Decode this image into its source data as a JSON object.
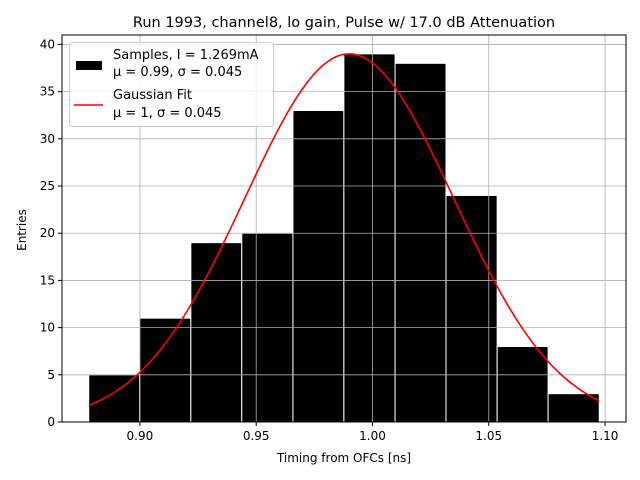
{
  "chart_data": {
    "type": "bar",
    "title": "Run 1993, channel8, lo gain, Pulse w/ 17.0 dB Attenuation",
    "xlabel": "Timing from OFCs [ns]",
    "ylabel": "Entries",
    "xlim": [
      0.8665,
      1.109
    ],
    "ylim": [
      0,
      41
    ],
    "xticks": [
      0.9,
      0.95,
      1.0,
      1.05,
      1.1
    ],
    "xtick_labels": [
      "0.90",
      "0.95",
      "1.00",
      "1.05",
      "1.10"
    ],
    "yticks": [
      0,
      5,
      10,
      15,
      20,
      25,
      30,
      35,
      40
    ],
    "ytick_labels": [
      "0",
      "5",
      "10",
      "15",
      "20",
      "25",
      "30",
      "35",
      "40"
    ],
    "grid": true,
    "bin_edges": [
      0.878,
      0.8999,
      0.9219,
      0.9438,
      0.9658,
      0.9877,
      1.0097,
      1.0316,
      1.0536,
      1.0755,
      1.0975
    ],
    "values": [
      5,
      11,
      19,
      20,
      33,
      39,
      38,
      24,
      8,
      3
    ],
    "fit": {
      "type": "gaussian",
      "amplitude": 39,
      "mu": 0.99,
      "sigma": 0.045,
      "x_range": [
        0.878,
        1.0975
      ]
    },
    "colors": {
      "bars": "#000000",
      "fit": "#ff0000"
    },
    "legend": {
      "placement": "top-left",
      "entries": [
        {
          "line1": "Samples, I = 1.269mA",
          "line2": "μ = 0.99, σ = 0.045"
        },
        {
          "line1": "Gaussian Fit",
          "line2": "μ = 1, σ = 0.045"
        }
      ]
    }
  }
}
